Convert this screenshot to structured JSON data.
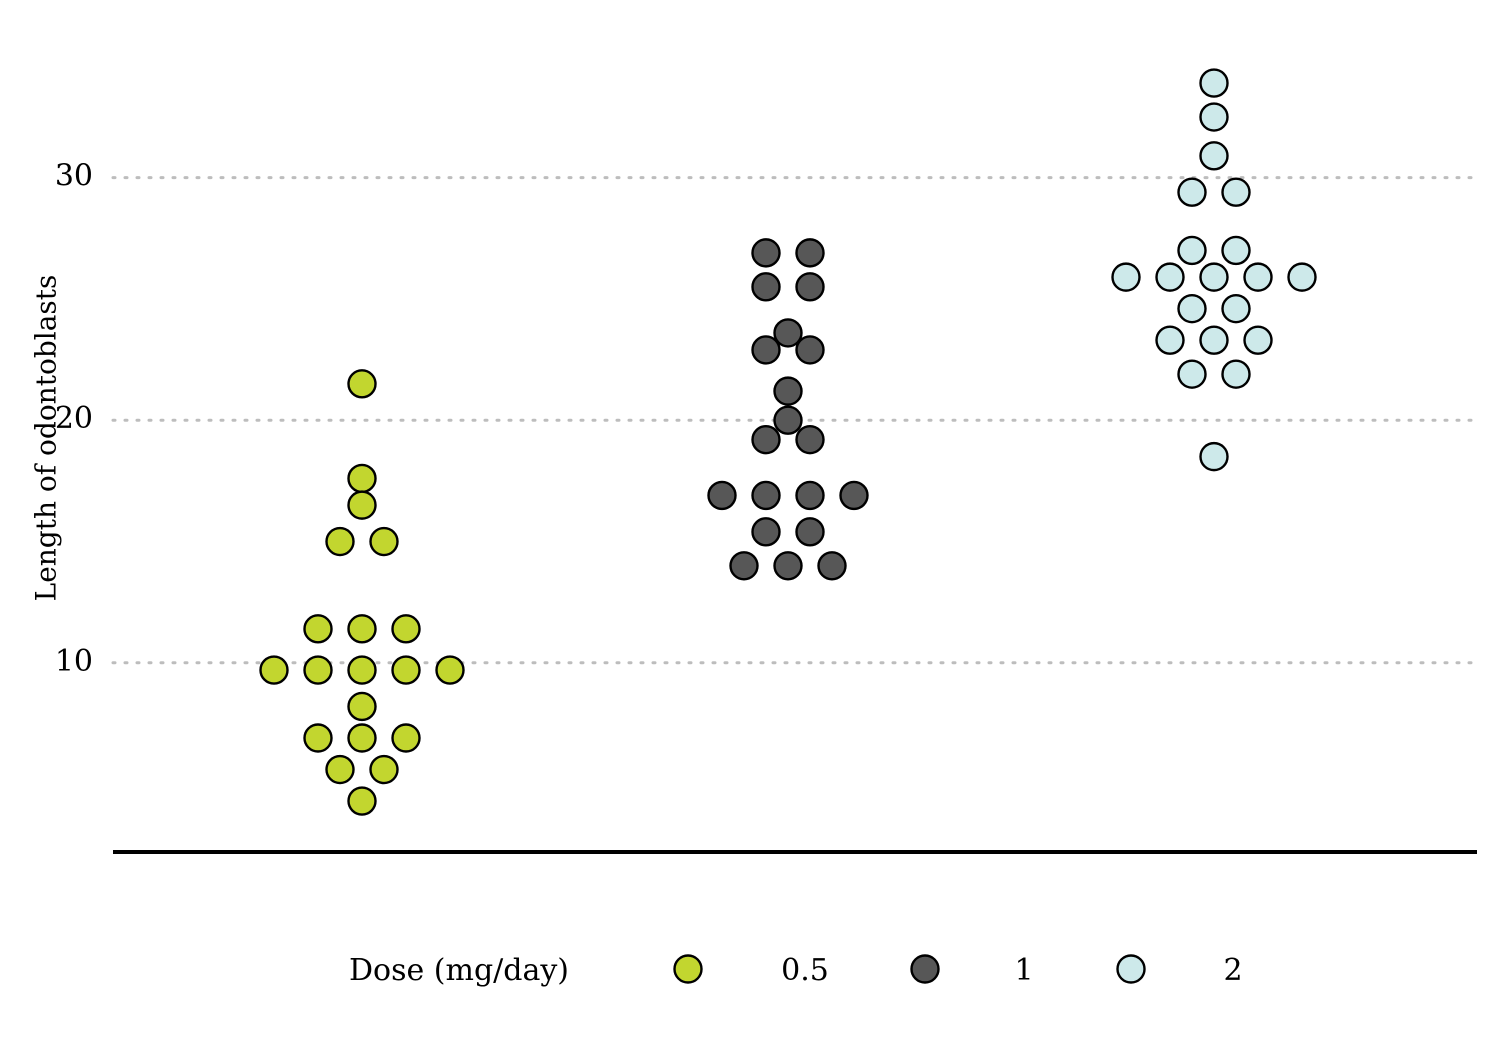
{
  "chart_data": {
    "type": "dotplot",
    "ylabel": "Length of odontoblasts",
    "xlabel": "",
    "ylim": [
      2.2,
      36.5
    ],
    "y_ticks": [
      10,
      20,
      30
    ],
    "grid": "horizontal dotted",
    "legend": {
      "title": "Dose (mg/day)",
      "position": "bottom"
    },
    "series": [
      {
        "name": "0.5",
        "color": "#c2d62f",
        "rows": [
          {
            "y": 21.5,
            "count": 1
          },
          {
            "y": 17.6,
            "count": 1
          },
          {
            "y": 16.5,
            "count": 1
          },
          {
            "y": 15.0,
            "count": 2
          },
          {
            "y": 11.4,
            "count": 3
          },
          {
            "y": 9.7,
            "count": 5
          },
          {
            "y": 8.2,
            "count": 1
          },
          {
            "y": 6.9,
            "count": 3
          },
          {
            "y": 5.6,
            "count": 2
          },
          {
            "y": 4.3,
            "count": 1
          }
        ]
      },
      {
        "name": "1",
        "color": "#575757",
        "rows": [
          {
            "y": 26.9,
            "count": 2
          },
          {
            "y": 25.5,
            "count": 2
          },
          {
            "y": 23.6,
            "count": 1
          },
          {
            "y": 22.9,
            "count": 2
          },
          {
            "y": 21.2,
            "count": 1
          },
          {
            "y": 20.0,
            "count": 1
          },
          {
            "y": 19.2,
            "count": 2
          },
          {
            "y": 16.9,
            "count": 4
          },
          {
            "y": 15.4,
            "count": 2
          },
          {
            "y": 14.0,
            "count": 3
          }
        ]
      },
      {
        "name": "2",
        "color": "#cde9ea",
        "rows": [
          {
            "y": 33.9,
            "count": 1
          },
          {
            "y": 32.5,
            "count": 1
          },
          {
            "y": 30.9,
            "count": 1
          },
          {
            "y": 29.4,
            "count": 2
          },
          {
            "y": 27.0,
            "count": 2
          },
          {
            "y": 25.9,
            "count": 5
          },
          {
            "y": 24.6,
            "count": 2
          },
          {
            "y": 23.3,
            "count": 3
          },
          {
            "y": 21.9,
            "count": 2
          },
          {
            "y": 18.5,
            "count": 1
          }
        ]
      }
    ]
  }
}
